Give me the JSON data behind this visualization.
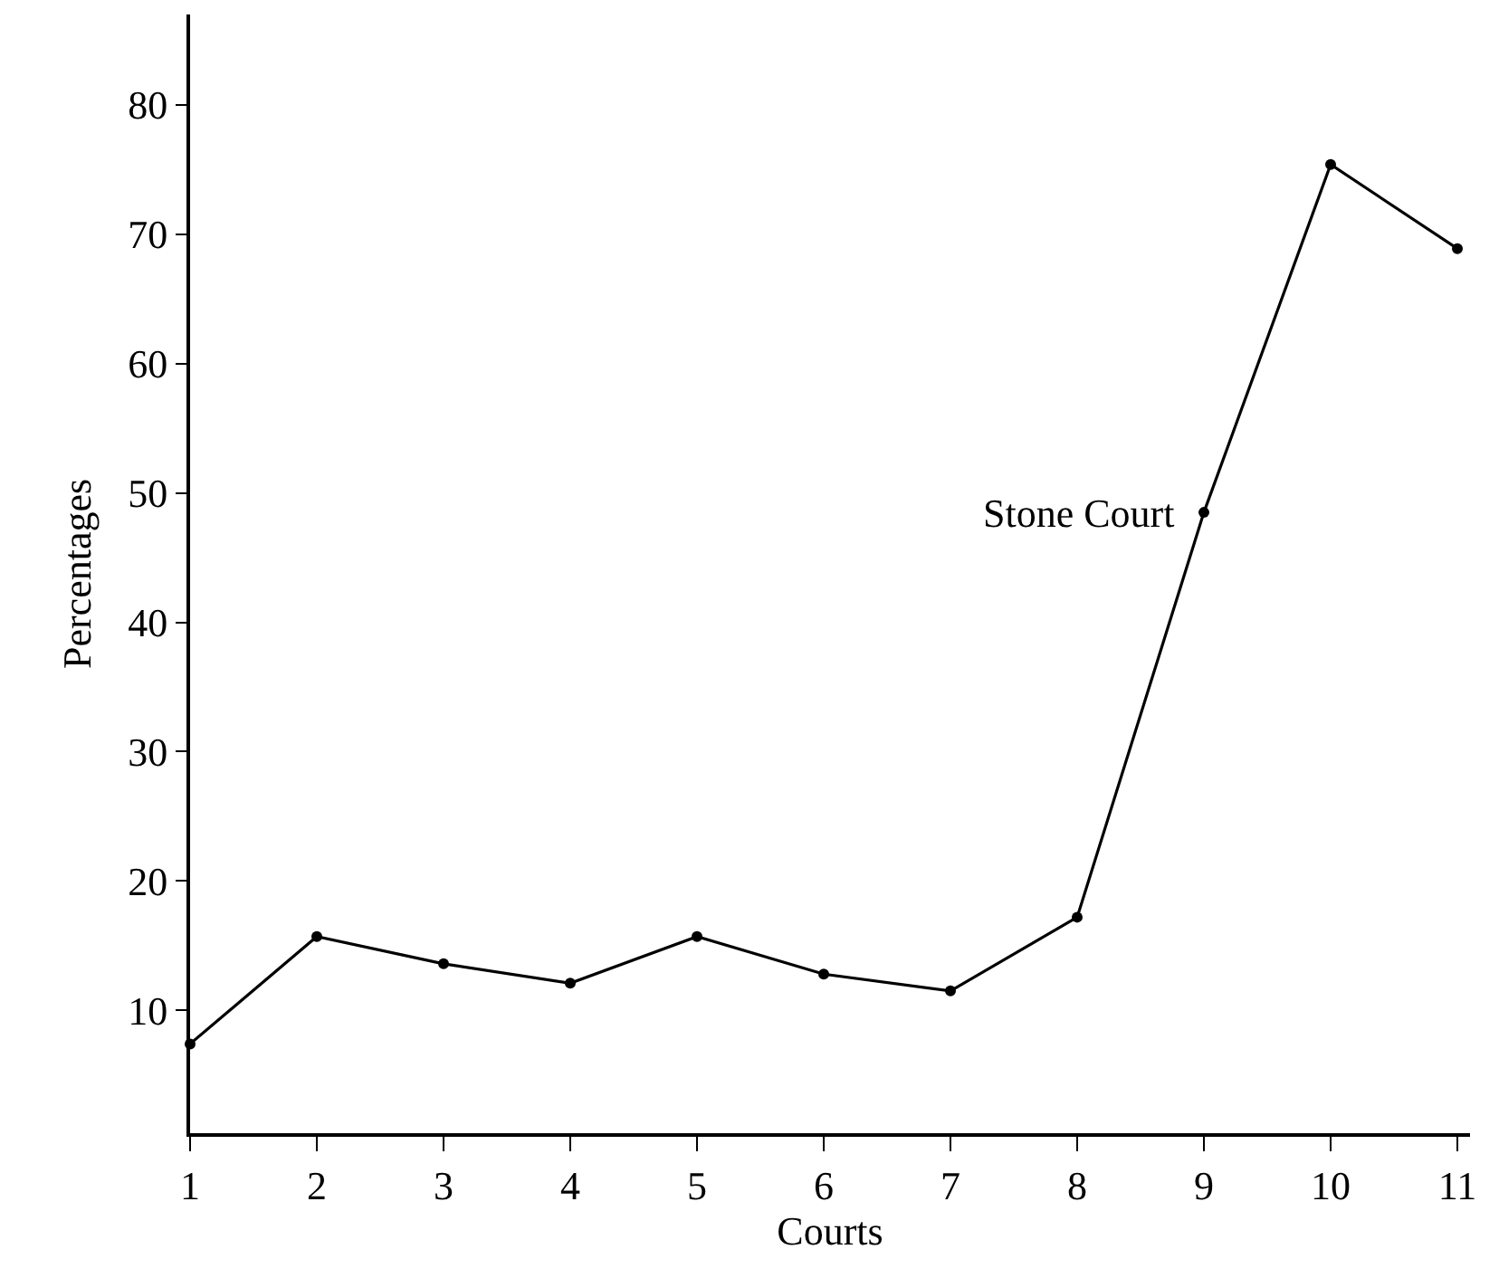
{
  "chart_data": {
    "type": "line",
    "xlabel": "Courts",
    "ylabel": "Percentages",
    "x": [
      1,
      2,
      3,
      4,
      5,
      6,
      7,
      8,
      9,
      10,
      11
    ],
    "values": [
      7.4,
      15.7,
      13.6,
      12.1,
      15.7,
      12.8,
      11.5,
      17.2,
      48.5,
      75.4,
      68.9
    ],
    "color": "#000000",
    "marker": "circle",
    "line_style": "solid",
    "legend": false,
    "xlim": [
      1,
      11.1
    ],
    "xticks": [
      1,
      2,
      3,
      4,
      5,
      6,
      7,
      8,
      9,
      10,
      11
    ],
    "ylim": [
      0.5,
      87
    ],
    "yticks": [
      10,
      20,
      30,
      40,
      50,
      60,
      70,
      80
    ],
    "annotations": [
      {
        "text": "Stone Court",
        "x": 9,
        "y": 48.5
      }
    ]
  }
}
